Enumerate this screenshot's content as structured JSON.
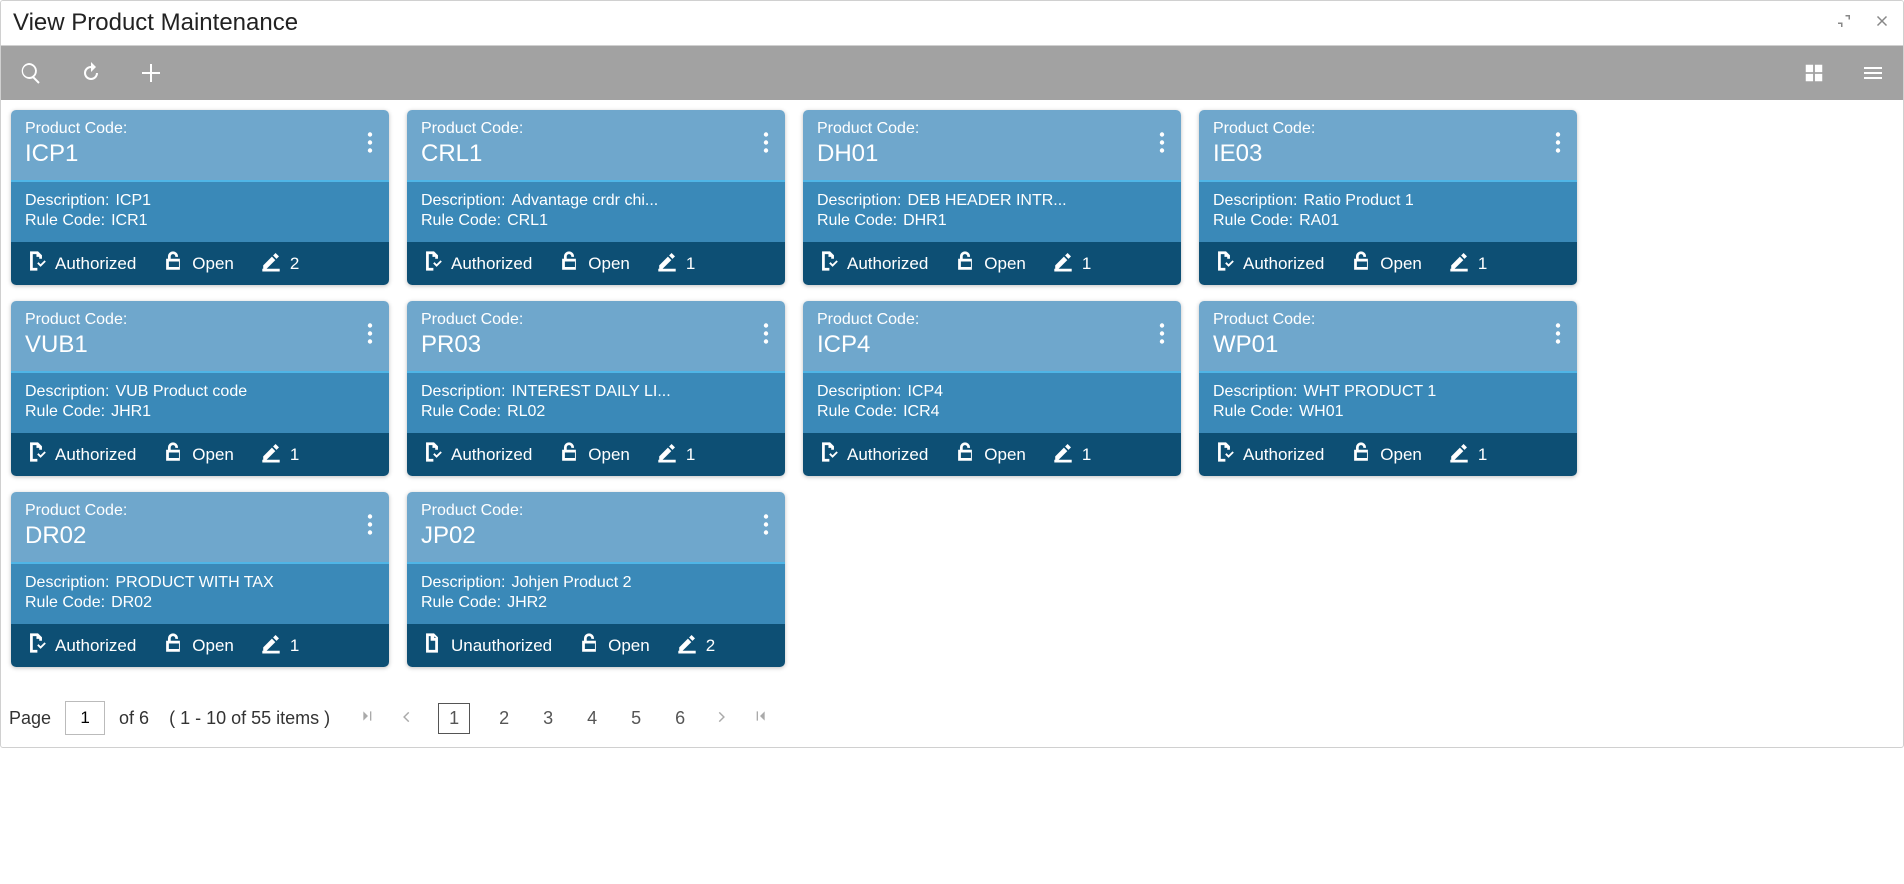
{
  "window": {
    "title": "View Product Maintenance"
  },
  "labels": {
    "product_code": "Product Code:",
    "description": "Description",
    "rule_code": "Rule Code",
    "authorized": "Authorized",
    "unauthorized": "Unauthorized",
    "open": "Open"
  },
  "colors": {
    "toolbar_bg": "#a2a2a2",
    "card_head_bg": "#6fa7cc",
    "card_body_bg": "#3a89b8",
    "card_foot_bg": "#0d4f74",
    "card_accent": "#4fb5e6"
  },
  "cards": [
    {
      "code": "ICP1",
      "description": "ICP1",
      "rule_code": "ICR1",
      "auth": "Authorized",
      "mods": "2"
    },
    {
      "code": "CRL1",
      "description": "Advantage crdr chi...",
      "rule_code": "CRL1",
      "auth": "Authorized",
      "mods": "1"
    },
    {
      "code": "DH01",
      "description": "DEB HEADER INTR...",
      "rule_code": "DHR1",
      "auth": "Authorized",
      "mods": "1"
    },
    {
      "code": "IE03",
      "description": "Ratio Product 1",
      "rule_code": "RA01",
      "auth": "Authorized",
      "mods": "1"
    },
    {
      "code": "VUB1",
      "description": "VUB Product code",
      "rule_code": "JHR1",
      "auth": "Authorized",
      "mods": "1"
    },
    {
      "code": "PR03",
      "description": "INTEREST DAILY LI...",
      "rule_code": "RL02",
      "auth": "Authorized",
      "mods": "1"
    },
    {
      "code": "ICP4",
      "description": "ICP4",
      "rule_code": "ICR4",
      "auth": "Authorized",
      "mods": "1"
    },
    {
      "code": "WP01",
      "description": "WHT PRODUCT 1",
      "rule_code": "WH01",
      "auth": "Authorized",
      "mods": "1"
    },
    {
      "code": "DR02",
      "description": "PRODUCT WITH TAX",
      "rule_code": "DR02",
      "auth": "Authorized",
      "mods": "1"
    },
    {
      "code": "JP02",
      "description": "Johjen Product 2",
      "rule_code": "JHR2",
      "auth": "Unauthorized",
      "mods": "2"
    }
  ],
  "pagination": {
    "page_label": "Page",
    "current_page": "1",
    "of_label": "of 6",
    "range_label": "( 1 - 10 of 55 items )",
    "pages": [
      "1",
      "2",
      "3",
      "4",
      "5",
      "6"
    ]
  }
}
